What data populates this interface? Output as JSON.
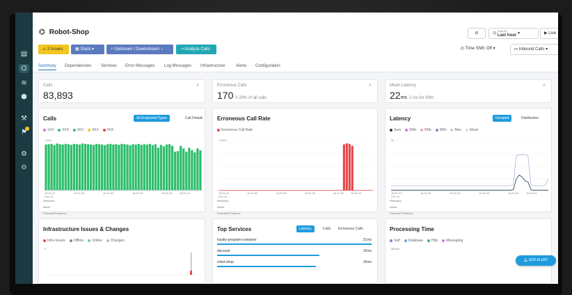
{
  "app": {
    "title": "Robot-Shop"
  },
  "issues_button": "2 Issues",
  "stack_button": "Stack",
  "updown_button": "Upstream / Downstream",
  "analyze_button": "Analyze Calls",
  "topright": {
    "past_small": "Past 24",
    "time_range": "Last hour",
    "live": "Live",
    "time_shift": "Time Shift: Off",
    "inbound": "Inbound Calls"
  },
  "tabs": [
    "Summary",
    "Dependencies",
    "Services",
    "Error Messages",
    "Log Messages",
    "Infrastructure",
    "Alerts",
    "Configuration"
  ],
  "kpis": {
    "calls": {
      "label": "Calls",
      "value": "83,893"
    },
    "errors": {
      "label": "Erroneous Calls",
      "value": "170",
      "sub": "0.20% of all calls"
    },
    "latency": {
      "label": "Mean Latency",
      "value": "22",
      "unit": "ms",
      "sub": "2 ms for 90th"
    }
  },
  "calls_chart": {
    "title": "Calls",
    "button_active": "All Endpoints/Types",
    "button_alt": "Call Details",
    "legend": [
      "1XX",
      "2XX",
      "3XX",
      "4XX",
      "5XX"
    ],
    "legend_colors": [
      "#c678dd",
      "#2ebd6b",
      "#4caf8d",
      "#f3c623",
      "#e5484d"
    ],
    "y_top": "1,500",
    "x_ticks": [
      "16:01:41\nFeb 24",
      "16:11:00",
      "16:21:00",
      "16:31:00",
      "16:41:00",
      "16:51:41"
    ],
    "rows": [
      "Releases",
      "Alerts",
      "Potential Problems"
    ],
    "chart_data": {
      "type": "bar",
      "ylim": [
        0,
        1500
      ],
      "values": [
        1420,
        1430,
        1440,
        1400,
        1450,
        1430,
        1420,
        1440,
        1430,
        1410,
        1440,
        1430,
        1420,
        1450,
        1440,
        1430,
        1420,
        1410,
        1440,
        1430,
        1420,
        1400,
        1430,
        1440,
        1420,
        1430,
        1410,
        1440,
        1430,
        1420,
        1400,
        1430,
        1420,
        1440,
        1410,
        1430,
        1420,
        1440,
        1400,
        1430,
        1320,
        1410,
        1360,
        1420,
        1430,
        1380,
        1200,
        1220,
        1380,
        1300,
        1200,
        1320,
        1250,
        1180,
        1300,
        1240
      ]
    }
  },
  "error_chart": {
    "title": "Erroneous Call Rate",
    "legend": [
      "Erroneous Call Rate"
    ],
    "legend_colors": [
      "#e5484d"
    ],
    "y_top": "1.00%",
    "x_ticks": [
      "16:01:41\nFeb 24",
      "16:11:00",
      "16:21:00",
      "16:31:00",
      "16:41:00",
      "16:51:41"
    ],
    "rows": [
      "Releases",
      "Alerts",
      "Potential Problems"
    ],
    "chart_data": {
      "type": "bar",
      "ylim": [
        0,
        1
      ],
      "values": [
        0,
        0,
        0,
        0,
        0,
        0,
        0,
        0,
        0,
        0,
        0,
        0,
        0,
        0,
        0,
        0,
        0,
        0,
        0,
        0,
        0,
        0,
        0,
        0,
        0,
        0,
        0,
        0,
        0,
        0,
        0,
        0,
        0,
        0,
        0,
        0,
        0,
        0,
        0,
        0,
        0,
        0,
        0,
        0,
        0,
        0.95,
        0.97,
        0.96,
        0.92,
        0,
        0,
        0,
        0,
        0,
        0,
        0
      ]
    }
  },
  "latency_chart": {
    "title": "Latency",
    "button_active": "Grouped",
    "button_alt": "Distribution",
    "legend": [
      "Sum",
      "50th",
      "55th",
      "90th",
      "Max",
      "Mean"
    ],
    "legend_colors": [
      "#1b3a42",
      "#c678dd",
      "#f3a0c0",
      "#8e7cc3",
      "#cccccc",
      "#dddddd"
    ],
    "y_top": "5s",
    "x_ticks": [
      "16:01:41\nFeb 24",
      "16:11:00",
      "16:21:00",
      "16:31:00",
      "16:41:00",
      "16:51:41"
    ],
    "rows": [
      "Releases",
      "Alerts",
      "Potential Problems"
    ],
    "chart_data": {
      "type": "line",
      "ylim": [
        0,
        5
      ],
      "series": [
        {
          "name": "Max",
          "values": [
            0.5,
            0.5,
            0.5,
            0.5,
            0.5,
            0.5,
            0.5,
            0.5,
            0.5,
            0.5,
            0.5,
            0.5,
            0.5,
            0.5,
            0.5,
            0.5,
            0.5,
            0.5,
            0.5,
            0.5,
            0.5,
            0.5,
            0.5,
            0.5,
            0.5,
            0.5,
            0.5,
            0.5,
            0.5,
            0.5,
            0.5,
            0.5,
            0.5,
            0.5,
            0.5,
            0.5,
            0.5,
            0.5,
            0.5,
            0.5,
            0.5,
            0.5,
            0.6,
            3.6,
            3.7,
            3.7,
            3.7,
            3.6,
            0.6,
            0.5,
            0.5,
            0.5,
            0.5,
            0.6,
            1.2
          ]
        },
        {
          "name": "Mean",
          "values": [
            0.05,
            0.05,
            0.05,
            0.05,
            0.05,
            0.05,
            0.05,
            0.05,
            0.05,
            0.05,
            0.05,
            0.05,
            0.05,
            0.05,
            0.05,
            0.05,
            0.05,
            0.05,
            0.05,
            0.05,
            0.05,
            0.05,
            0.05,
            0.05,
            0.05,
            0.05,
            0.05,
            0.05,
            0.05,
            0.05,
            0.05,
            0.05,
            0.05,
            0.05,
            0.05,
            0.05,
            0.05,
            0.05,
            0.05,
            0.05,
            0.05,
            0.05,
            0.1,
            1.2,
            1.6,
            1.4,
            1.0,
            0.9,
            0.1,
            0.05,
            0.05,
            0.05,
            0.05,
            0.05,
            0.05
          ]
        }
      ]
    }
  },
  "infra_chart": {
    "title": "Infrastructure Issues & Changes",
    "legend": [
      "Infra Issues",
      "Offline",
      "Online",
      "Changes"
    ],
    "legend_colors": [
      "#e5484d",
      "#888888",
      "#66cccc",
      "#bbbbbb"
    ],
    "y_top": "5"
  },
  "top_services": {
    "title": "Top Services",
    "tabs": [
      "Latency",
      "Calls",
      "Erroneous Calls"
    ],
    "items": [
      {
        "name": "loyalty-program-container",
        "value": "21ms",
        "fraction": 1.0
      },
      {
        "name": "discount",
        "value": "15ms",
        "fraction": 0.66
      },
      {
        "name": "robot-shop",
        "value": "15ms",
        "fraction": 0.64
      }
    ]
  },
  "processing_time": {
    "title": "Processing Time",
    "legend": [
      "Self",
      "Database",
      "Http",
      "Messaging"
    ],
    "legend_colors": [
      "#8e7cc3",
      "#6fa3d8",
      "#2ebd6b",
      "#c678dd"
    ],
    "y_top": "550ms"
  },
  "add_alert": "ADD ALERT"
}
